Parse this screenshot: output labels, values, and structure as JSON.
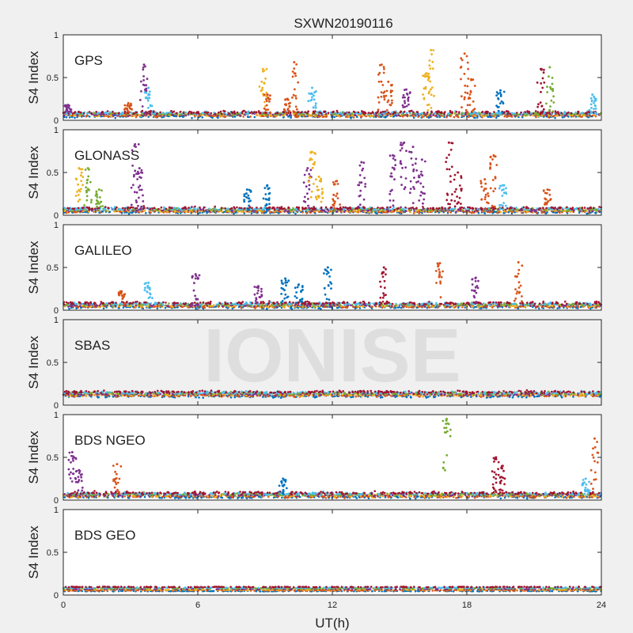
{
  "chart_data": {
    "type": "scatter",
    "title": "SXWN20190116",
    "xlabel": "UT(h)",
    "ylabel": "S4 Index",
    "xlim": [
      0,
      24
    ],
    "ylim": [
      0,
      1
    ],
    "x_ticks": [
      "0",
      "6",
      "12",
      "18",
      "24"
    ],
    "y_ticks": [
      "0",
      "0.5",
      "1"
    ],
    "watermark": "IONISE",
    "series_colors": [
      "#0072bd",
      "#d95319",
      "#edb120",
      "#7e2f8e",
      "#77ac30",
      "#4dbeee",
      "#a2142f"
    ],
    "panels": [
      {
        "label": "GPS",
        "baseline": 0.07,
        "spikes": [
          {
            "x": 0.2,
            "peak": 0.18,
            "series": 3
          },
          {
            "x": 2.9,
            "peak": 0.2,
            "series": 1
          },
          {
            "x": 3.6,
            "peak": 0.65,
            "series": 3
          },
          {
            "x": 3.8,
            "peak": 0.38,
            "series": 5
          },
          {
            "x": 8.9,
            "peak": 0.6,
            "series": 2
          },
          {
            "x": 9.1,
            "peak": 0.3,
            "series": 1
          },
          {
            "x": 10.0,
            "peak": 0.25,
            "series": 1
          },
          {
            "x": 10.3,
            "peak": 0.68,
            "series": 1
          },
          {
            "x": 11.1,
            "peak": 0.38,
            "series": 5
          },
          {
            "x": 14.2,
            "peak": 0.65,
            "series": 1
          },
          {
            "x": 14.5,
            "peak": 0.45,
            "series": 1
          },
          {
            "x": 15.3,
            "peak": 0.36,
            "series": 3
          },
          {
            "x": 16.2,
            "peak": 0.55,
            "series": 2
          },
          {
            "x": 16.4,
            "peak": 0.82,
            "series": 2
          },
          {
            "x": 17.9,
            "peak": 0.78,
            "series": 1
          },
          {
            "x": 18.2,
            "peak": 0.48,
            "series": 1
          },
          {
            "x": 19.5,
            "peak": 0.35,
            "series": 0
          },
          {
            "x": 21.3,
            "peak": 0.6,
            "series": 6
          },
          {
            "x": 21.7,
            "peak": 0.62,
            "series": 4
          },
          {
            "x": 23.6,
            "peak": 0.3,
            "series": 5
          }
        ]
      },
      {
        "label": "GLONASS",
        "baseline": 0.06,
        "spikes": [
          {
            "x": 0.7,
            "peak": 0.55,
            "series": 2
          },
          {
            "x": 1.1,
            "peak": 0.55,
            "series": 4
          },
          {
            "x": 1.6,
            "peak": 0.3,
            "series": 4
          },
          {
            "x": 3.2,
            "peak": 0.83,
            "series": 3
          },
          {
            "x": 3.4,
            "peak": 0.55,
            "series": 3
          },
          {
            "x": 8.2,
            "peak": 0.3,
            "series": 0
          },
          {
            "x": 9.1,
            "peak": 0.35,
            "series": 0
          },
          {
            "x": 10.9,
            "peak": 0.55,
            "series": 3
          },
          {
            "x": 11.1,
            "peak": 0.74,
            "series": 2
          },
          {
            "x": 11.4,
            "peak": 0.45,
            "series": 2
          },
          {
            "x": 12.2,
            "peak": 0.4,
            "series": 1
          },
          {
            "x": 13.3,
            "peak": 0.62,
            "series": 3
          },
          {
            "x": 14.7,
            "peak": 0.7,
            "series": 3
          },
          {
            "x": 15.2,
            "peak": 0.85,
            "series": 3
          },
          {
            "x": 15.6,
            "peak": 0.8,
            "series": 3
          },
          {
            "x": 16.0,
            "peak": 0.65,
            "series": 3
          },
          {
            "x": 17.2,
            "peak": 0.85,
            "series": 6
          },
          {
            "x": 17.6,
            "peak": 0.5,
            "series": 6
          },
          {
            "x": 18.8,
            "peak": 0.42,
            "series": 1
          },
          {
            "x": 19.2,
            "peak": 0.7,
            "series": 1
          },
          {
            "x": 19.6,
            "peak": 0.35,
            "series": 5
          },
          {
            "x": 21.6,
            "peak": 0.3,
            "series": 1
          }
        ]
      },
      {
        "label": "GALILEO",
        "baseline": 0.06,
        "spikes": [
          {
            "x": 2.6,
            "peak": 0.22,
            "series": 1
          },
          {
            "x": 3.8,
            "peak": 0.32,
            "series": 5
          },
          {
            "x": 5.9,
            "peak": 0.42,
            "series": 3
          },
          {
            "x": 8.7,
            "peak": 0.28,
            "series": 3
          },
          {
            "x": 9.9,
            "peak": 0.37,
            "series": 0
          },
          {
            "x": 10.5,
            "peak": 0.3,
            "series": 0
          },
          {
            "x": 11.8,
            "peak": 0.5,
            "series": 0
          },
          {
            "x": 14.3,
            "peak": 0.5,
            "series": 6
          },
          {
            "x": 16.8,
            "peak": 0.55,
            "series": 1
          },
          {
            "x": 18.4,
            "peak": 0.38,
            "series": 3
          },
          {
            "x": 20.3,
            "peak": 0.56,
            "series": 1
          }
        ]
      },
      {
        "label": "SBAS",
        "baseline": 0.13,
        "spikes": []
      },
      {
        "label": "BDS NGEO",
        "baseline": 0.06,
        "spikes": [
          {
            "x": 0.4,
            "peak": 0.56,
            "series": 3
          },
          {
            "x": 0.7,
            "peak": 0.35,
            "series": 3
          },
          {
            "x": 2.4,
            "peak": 0.42,
            "series": 1
          },
          {
            "x": 9.8,
            "peak": 0.25,
            "series": 0
          },
          {
            "x": 17.1,
            "peak": 0.95,
            "series": 4
          },
          {
            "x": 19.3,
            "peak": 0.5,
            "series": 6
          },
          {
            "x": 19.6,
            "peak": 0.4,
            "series": 6
          },
          {
            "x": 23.3,
            "peak": 0.25,
            "series": 5
          },
          {
            "x": 23.7,
            "peak": 0.72,
            "series": 1
          }
        ]
      },
      {
        "label": "BDS GEO",
        "baseline": 0.07,
        "spikes": []
      }
    ]
  }
}
